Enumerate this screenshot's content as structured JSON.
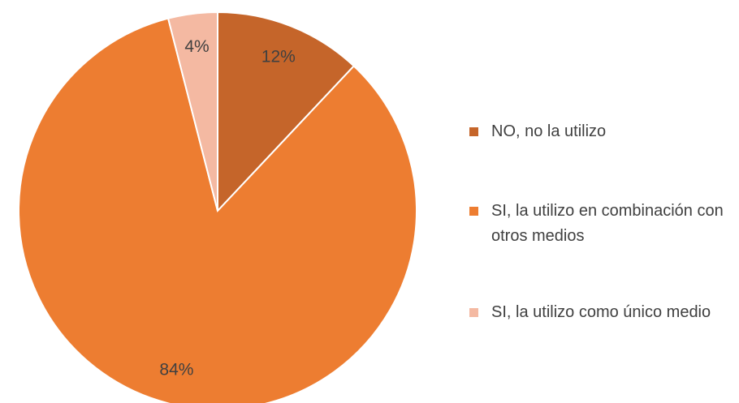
{
  "chart_data": {
    "type": "pie",
    "categories": [
      "NO, no la utilizo",
      "SI, la utilizo en combinación con otros medios",
      "SI, la utilizo como único medio"
    ],
    "values": [
      12,
      84,
      4
    ],
    "value_labels": [
      "12%",
      "84%",
      "4%"
    ],
    "colors": [
      "#c5652a",
      "#ed7d31",
      "#f4b9a2"
    ],
    "legend": "right"
  }
}
